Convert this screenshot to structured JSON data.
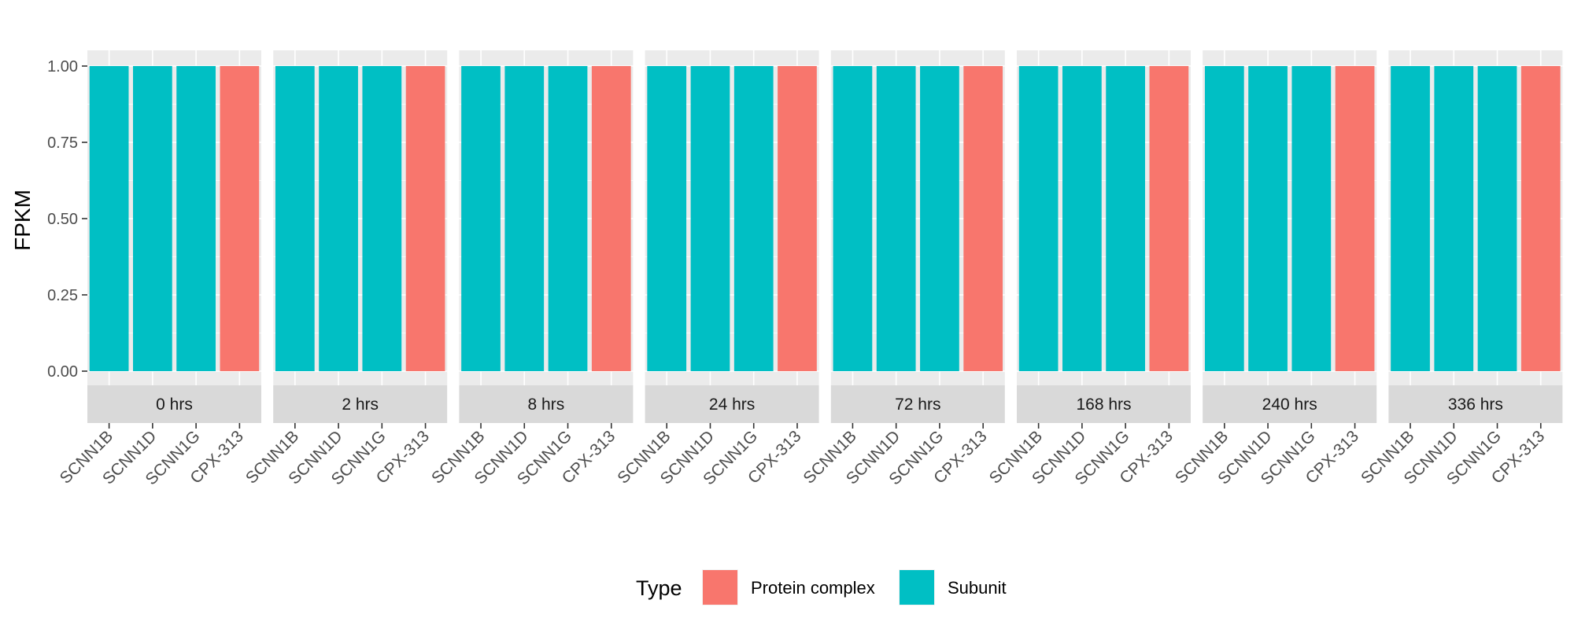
{
  "chart_data": {
    "type": "bar",
    "ylabel": "FPKM",
    "ylim": [
      0,
      1
    ],
    "yticks": [
      "0.00",
      "0.25",
      "0.50",
      "0.75",
      "1.00"
    ],
    "ytick_values": [
      0,
      0.25,
      0.5,
      0.75,
      1
    ],
    "categories": [
      "SCNN1B",
      "SCNN1D",
      "SCNN1G",
      "CPX-313"
    ],
    "category_types": [
      "Subunit",
      "Subunit",
      "Subunit",
      "Protein complex"
    ],
    "facets": [
      {
        "label": "0 hrs",
        "values": [
          1,
          1,
          1,
          1
        ]
      },
      {
        "label": "2 hrs",
        "values": [
          1,
          1,
          1,
          1
        ]
      },
      {
        "label": "8 hrs",
        "values": [
          1,
          1,
          1,
          1
        ]
      },
      {
        "label": "24 hrs",
        "values": [
          1,
          1,
          1,
          1
        ]
      },
      {
        "label": "72 hrs",
        "values": [
          1,
          1,
          1,
          1
        ]
      },
      {
        "label": "168 hrs",
        "values": [
          1,
          1,
          1,
          1
        ]
      },
      {
        "label": "240 hrs",
        "values": [
          1,
          1,
          1,
          1
        ]
      },
      {
        "label": "336 hrs",
        "values": [
          1,
          1,
          1,
          1
        ]
      }
    ],
    "legend": {
      "title": "Type",
      "position": "bottom",
      "items": [
        {
          "label": "Protein complex",
          "color": "#F8766D"
        },
        {
          "label": "Subunit",
          "color": "#00BFC4"
        }
      ]
    },
    "grid": true
  }
}
